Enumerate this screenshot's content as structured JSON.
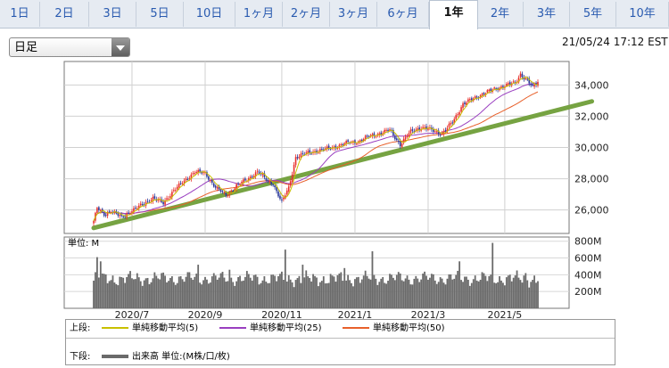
{
  "tabs": [
    "1日",
    "2日",
    "3日",
    "5日",
    "10日",
    "1ヶ月",
    "2ヶ月",
    "3ヶ月",
    "6ヶ月",
    "1年",
    "2年",
    "3年",
    "5年",
    "10年"
  ],
  "active_tab": "1年",
  "select": {
    "value": "日足"
  },
  "timestamp": "21/05/24 17:12 EST",
  "legend": {
    "upper_label": "上段:",
    "lower_label": "下段:",
    "ma5": "単純移動平均(5)",
    "ma25": "単純移動平均(25)",
    "ma50": "単純移動平均(50)",
    "volume": "出来高 単位:(M株/口/枚)"
  },
  "colors": {
    "up": "#e8302b",
    "down": "#2b3a9a",
    "ma5": "#c9c000",
    "ma25": "#9a3fc0",
    "ma50": "#e8602b",
    "trend": "#76a342",
    "volume": "#6a6a6a"
  },
  "chart_data": [
    {
      "type": "candlestick",
      "x_tick_labels": [
        "2020/7",
        "2020/9",
        "2020/11",
        "2021/1",
        "2021/3",
        "2021/5"
      ],
      "y_ticks": [
        "26,000",
        "28,000",
        "30,000",
        "32,000",
        "34,000"
      ],
      "ylim": [
        24500,
        35500
      ],
      "anchors": [
        [
          0,
          25300
        ],
        [
          2,
          26100
        ],
        [
          6,
          25700
        ],
        [
          10,
          26000
        ],
        [
          16,
          25500
        ],
        [
          22,
          26000
        ],
        [
          28,
          26300
        ],
        [
          34,
          26800
        ],
        [
          40,
          26400
        ],
        [
          46,
          27300
        ],
        [
          52,
          27800
        ],
        [
          58,
          28500
        ],
        [
          64,
          28300
        ],
        [
          70,
          27500
        ],
        [
          76,
          26900
        ],
        [
          82,
          27600
        ],
        [
          88,
          27900
        ],
        [
          94,
          28500
        ],
        [
          100,
          27800
        ],
        [
          103,
          27700
        ],
        [
          108,
          26500
        ],
        [
          112,
          27400
        ],
        [
          116,
          29400
        ],
        [
          122,
          29600
        ],
        [
          128,
          29800
        ],
        [
          134,
          29900
        ],
        [
          140,
          30100
        ],
        [
          146,
          30300
        ],
        [
          152,
          30400
        ],
        [
          158,
          30700
        ],
        [
          164,
          30900
        ],
        [
          170,
          31100
        ],
        [
          176,
          30200
        ],
        [
          182,
          31000
        ],
        [
          188,
          31300
        ],
        [
          194,
          31100
        ],
        [
          200,
          30900
        ],
        [
          206,
          31600
        ],
        [
          212,
          32800
        ],
        [
          218,
          33100
        ],
        [
          224,
          33500
        ],
        [
          230,
          33700
        ],
        [
          236,
          34000
        ],
        [
          242,
          34100
        ],
        [
          245,
          34700
        ],
        [
          249,
          34300
        ],
        [
          252,
          33800
        ],
        [
          255,
          34200
        ]
      ],
      "trendline": [
        [
          0,
          24850
        ],
        [
          286,
          32950
        ]
      ]
    },
    {
      "type": "bar",
      "title": "単位: M",
      "y_ticks": [
        "200M",
        "400M",
        "600M",
        "800M"
      ],
      "ylim": [
        0,
        850
      ],
      "spikes": [
        [
          2,
          610
        ],
        [
          4,
          560
        ],
        [
          60,
          520
        ],
        [
          78,
          460
        ],
        [
          110,
          700
        ],
        [
          120,
          520
        ],
        [
          144,
          480
        ],
        [
          160,
          680
        ],
        [
          210,
          560
        ],
        [
          229,
          780
        ],
        [
          248,
          420
        ]
      ]
    }
  ]
}
